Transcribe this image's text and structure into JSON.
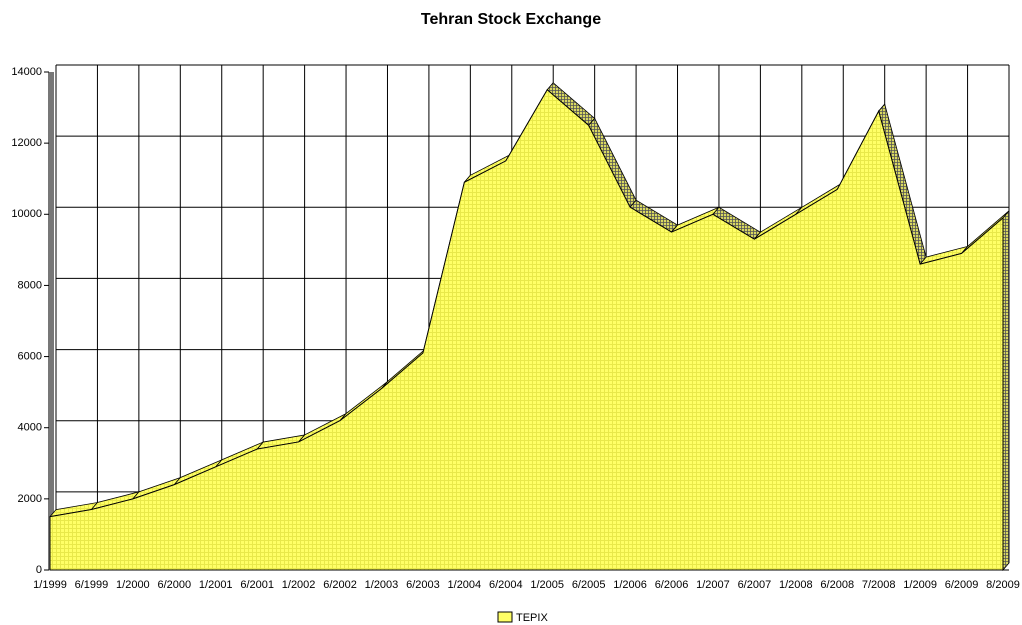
{
  "chart_data": {
    "type": "area",
    "title": "Tehran Stock Exchange",
    "categories": [
      "1/1999",
      "6/1999",
      "1/2000",
      "6/2000",
      "1/2001",
      "6/2001",
      "1/2002",
      "6/2002",
      "1/2003",
      "6/2003",
      "1/2004",
      "6/2004",
      "1/2005",
      "6/2005",
      "1/2006",
      "6/2006",
      "1/2007",
      "6/2007",
      "1/2008",
      "6/2008",
      "7/2008",
      "1/2009",
      "6/2009",
      "8/2009"
    ],
    "series": [
      {
        "name": "TEPIX",
        "color": "#ffff66",
        "values": [
          1500,
          1700,
          2000,
          2400,
          2900,
          3400,
          3600,
          4200,
          5100,
          6100,
          10900,
          11500,
          13500,
          12500,
          10200,
          9500,
          10000,
          9300,
          10000,
          10700,
          12900,
          8600,
          8900,
          9900
        ]
      }
    ],
    "ylim": [
      0,
      14000
    ],
    "yticks": [
      0,
      2000,
      4000,
      6000,
      8000,
      10000,
      12000,
      14000
    ],
    "grid": true,
    "legend": "bottom"
  }
}
